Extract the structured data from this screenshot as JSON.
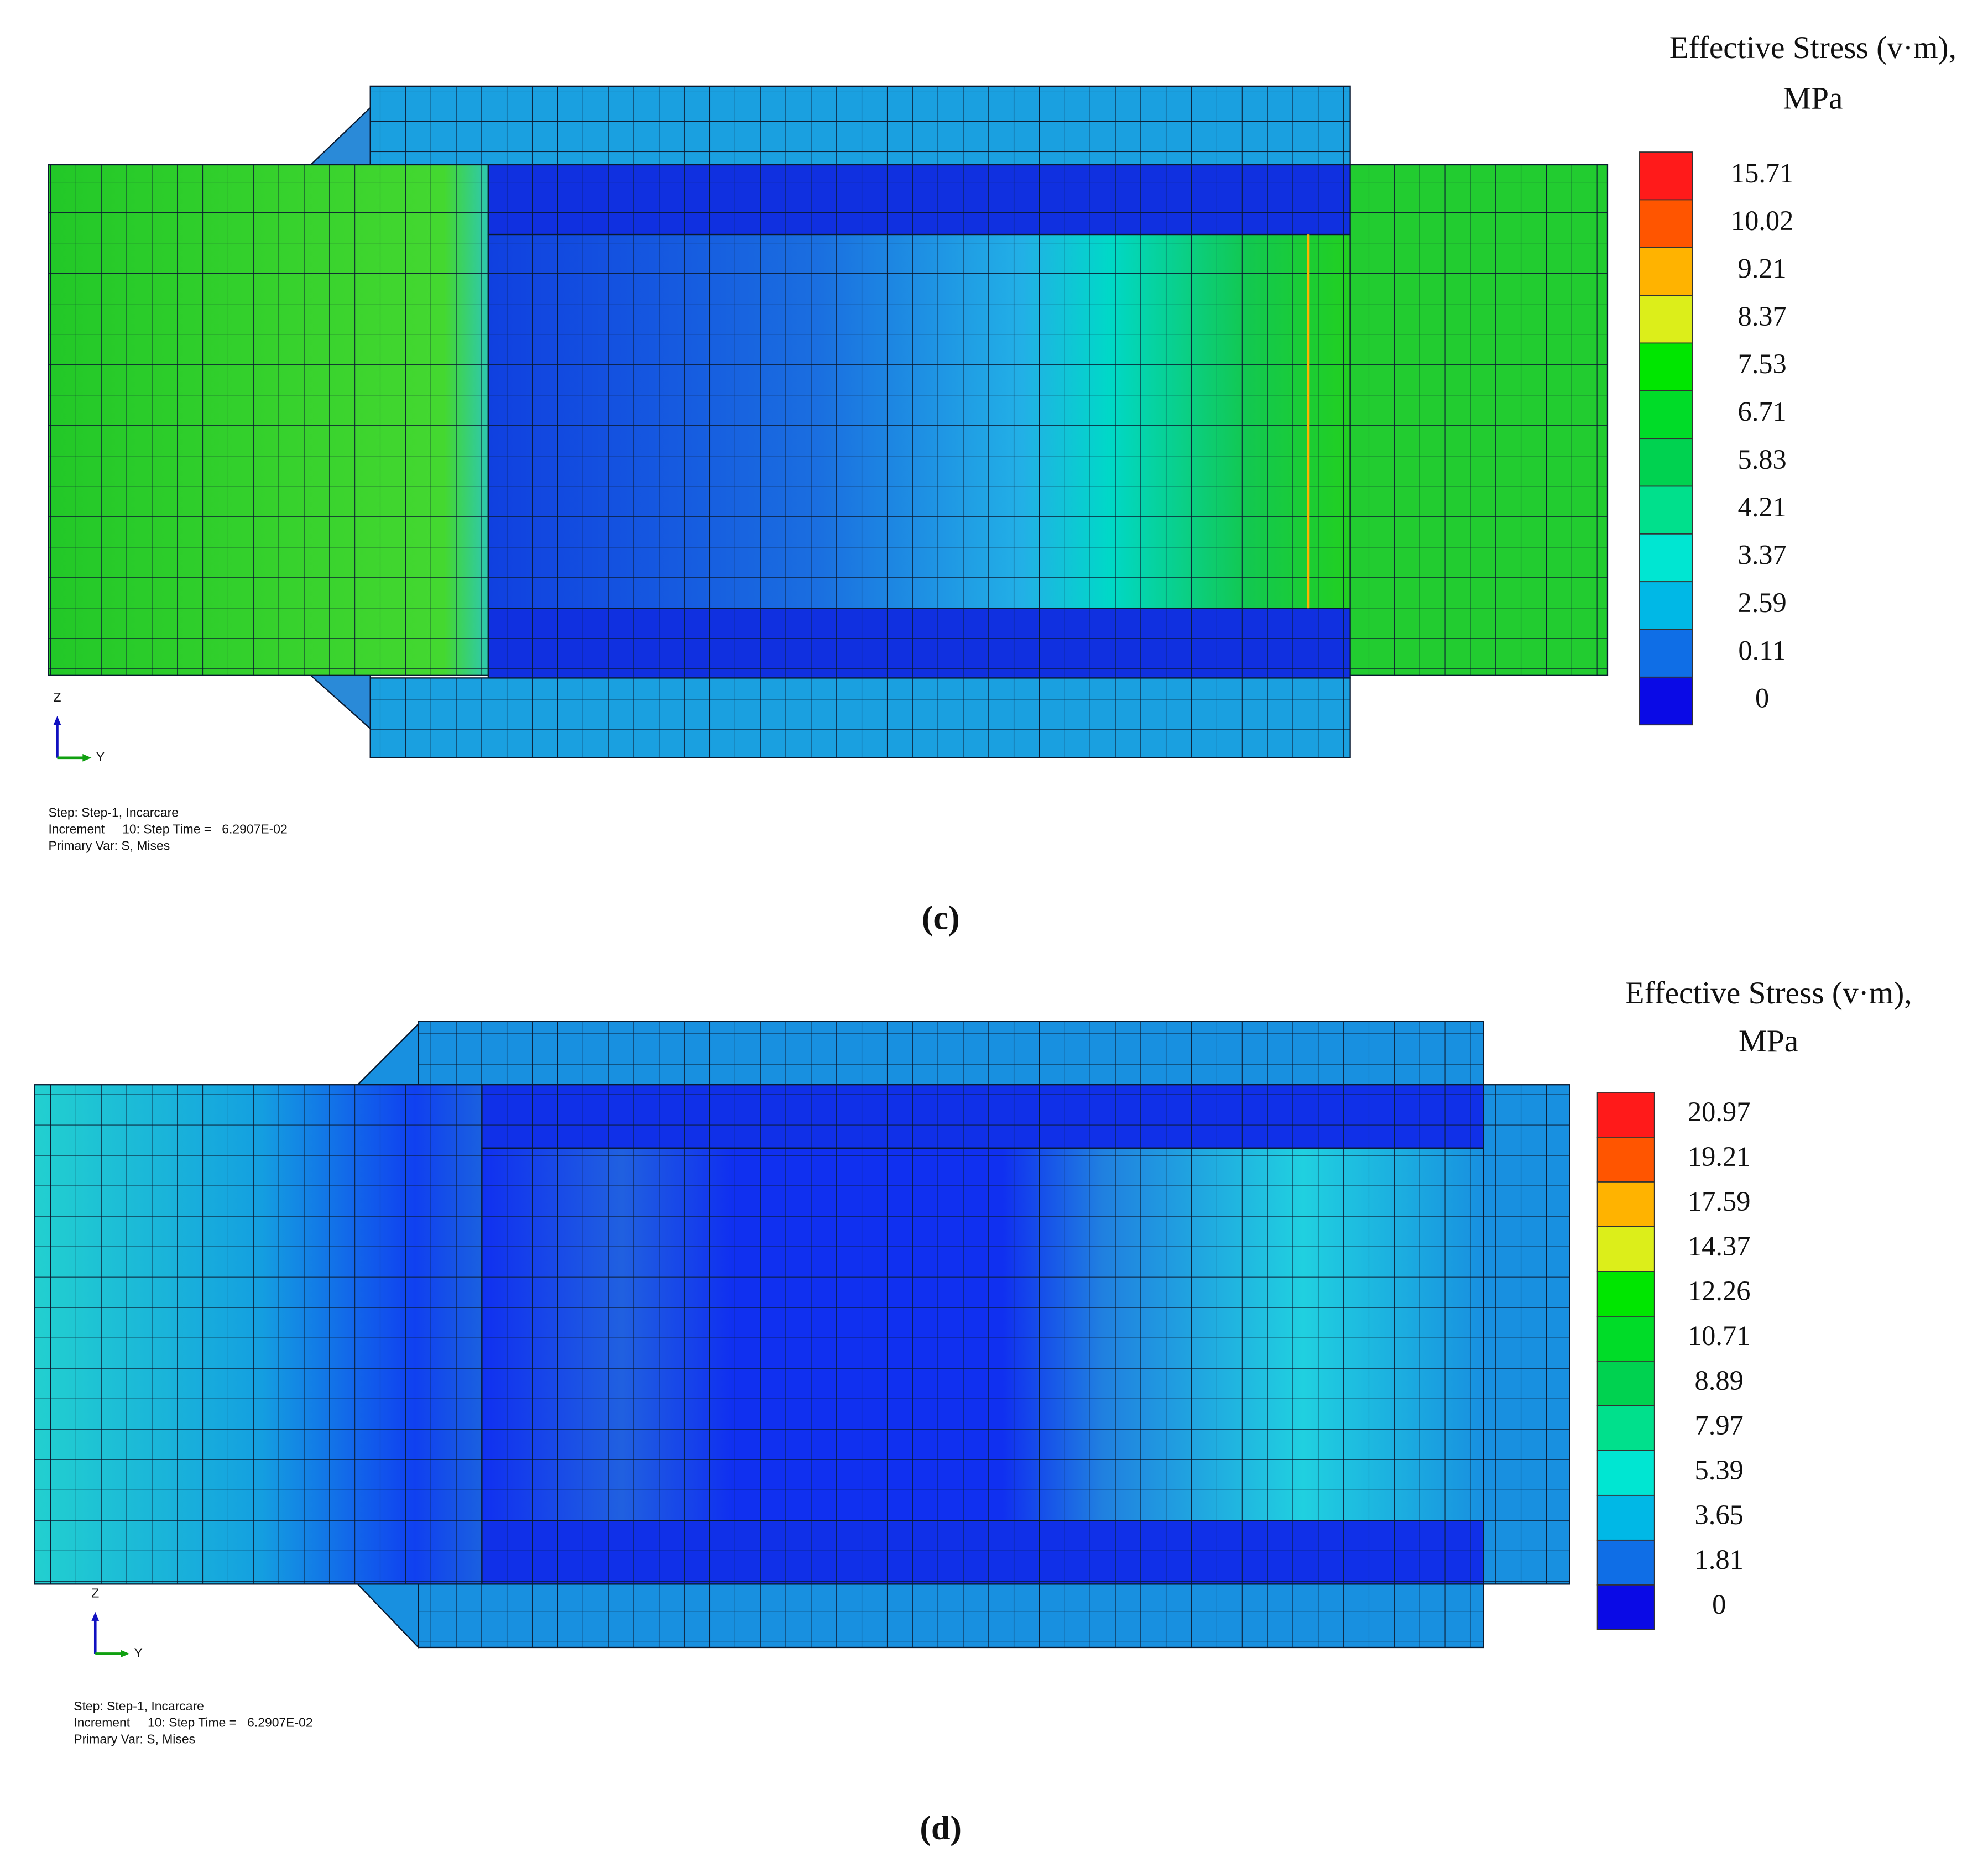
{
  "panels": [
    {
      "legend": {
        "title": "Effective Stress (v·m),",
        "unit": "MPa",
        "labels": [
          "15.71",
          "10.02",
          "9.21",
          "8.37",
          "7.53",
          "6.71",
          "5.83",
          "4.21",
          "3.37",
          "2.59",
          "0.11",
          "0"
        ],
        "colors": [
          "#ff1a1a",
          "#ff5500",
          "#ffb300",
          "#dcee1a",
          "#00e600",
          "#00dc28",
          "#00d250",
          "#00e08c",
          "#00e6d2",
          "#00b8e6",
          "#0f6ee6",
          "#0a0ae6"
        ]
      },
      "axis": {
        "z": "Z",
        "y": "Y"
      },
      "info": [
        "Step: Step-1, Incarcare",
        "Increment     10: Step Time =   6.2907E-02",
        "Primary Var: S, Mises"
      ],
      "caption": "(c)"
    },
    {
      "legend": {
        "title": "Effective Stress (v·m),",
        "unit": "MPa",
        "labels": [
          "20.97",
          "19.21",
          "17.59",
          "14.37",
          "12.26",
          "10.71",
          "8.89",
          "7.97",
          "5.39",
          "3.65",
          "1.81",
          "0"
        ],
        "colors": [
          "#ff1a1a",
          "#ff5500",
          "#ffb300",
          "#dcee1a",
          "#00e600",
          "#00dc28",
          "#00d250",
          "#00e08c",
          "#00e6d2",
          "#00b8e6",
          "#0f6ee6",
          "#0a0ae6"
        ]
      },
      "axis": {
        "z": "Z",
        "y": "Y"
      },
      "info": [
        "Step: Step-1, Incarcare",
        "Increment     10: Step Time =   6.2907E-02",
        "Primary Var: S, Mises"
      ],
      "caption": "(d)"
    }
  ]
}
